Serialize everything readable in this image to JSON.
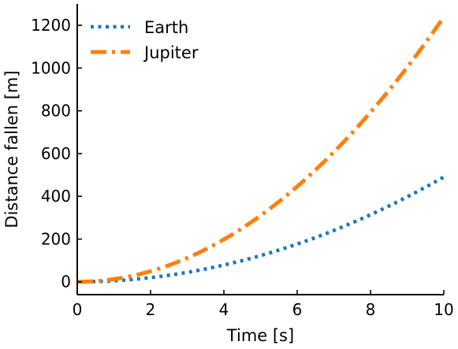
{
  "chart_data": {
    "type": "line",
    "title": "",
    "xlabel": "Time [s]",
    "ylabel": "Distance fallen [m]",
    "xlim": [
      0,
      10
    ],
    "ylim": [
      -60,
      1300
    ],
    "xticks": [
      0,
      2,
      4,
      6,
      8,
      10
    ],
    "yticks": [
      0,
      200,
      400,
      600,
      800,
      1000,
      1200
    ],
    "x": [
      0,
      1,
      2,
      3,
      4,
      5,
      6,
      7,
      8,
      9,
      10
    ],
    "grid": false,
    "legend_position": "upper-left",
    "series": [
      {
        "name": "Earth",
        "color": "#1f77b4",
        "line_style": "dotted",
        "values": [
          0,
          4.9,
          19.6,
          44.1,
          78.5,
          122.6,
          176.6,
          240.3,
          313.9,
          397.3,
          490.5
        ]
      },
      {
        "name": "Jupiter",
        "color": "#ff7f0e",
        "line_style": "dashdot",
        "values": [
          0,
          12.4,
          49.6,
          111.5,
          198.2,
          309.8,
          446.0,
          607.1,
          793.0,
          1003.6,
          1239.0
        ]
      }
    ]
  }
}
